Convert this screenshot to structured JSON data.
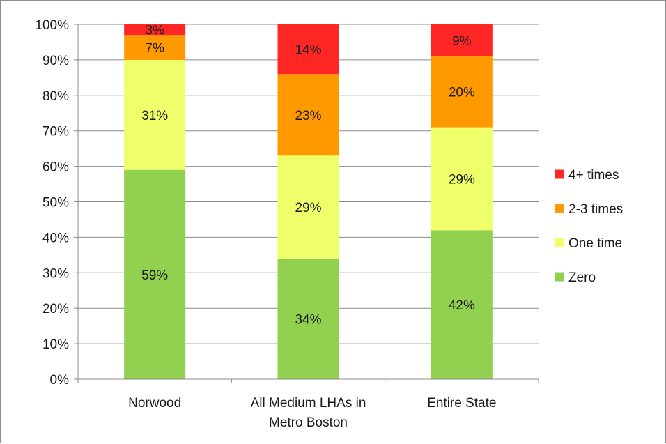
{
  "chart_data": {
    "type": "bar",
    "stacked": true,
    "normalized": true,
    "categories": [
      [
        "Norwood"
      ],
      [
        "All Medium LHAs in",
        "Metro Boston"
      ],
      [
        "Entire State"
      ]
    ],
    "series": [
      {
        "name": "Zero",
        "values": [
          59,
          34,
          42
        ],
        "labels": [
          "59%",
          "34%",
          "42%"
        ],
        "color": "#92d050"
      },
      {
        "name": "One time",
        "values": [
          31,
          29,
          29
        ],
        "labels": [
          "31%",
          "29%",
          "29%"
        ],
        "color": "#eeff6a"
      },
      {
        "name": "2-3 times",
        "values": [
          7,
          23,
          20
        ],
        "labels": [
          "7%",
          "23%",
          "20%"
        ],
        "color": "#ff9900"
      },
      {
        "name": "4+ times",
        "values": [
          3,
          14,
          9
        ],
        "labels": [
          "3%",
          "14%",
          "9%"
        ],
        "color": "#ff2626"
      }
    ],
    "y_ticks": [
      "0%",
      "10%",
      "20%",
      "30%",
      "40%",
      "50%",
      "60%",
      "70%",
      "80%",
      "90%",
      "100%"
    ],
    "ylim": [
      0,
      100
    ],
    "grid": true,
    "legend_position": "right",
    "legend_order": [
      "4+ times",
      "2-3 times",
      "One time",
      "Zero"
    ],
    "colors": {
      "grid": "#8c8c8c",
      "axis": "#8c8c8c",
      "text": "#1a1a1a"
    }
  }
}
